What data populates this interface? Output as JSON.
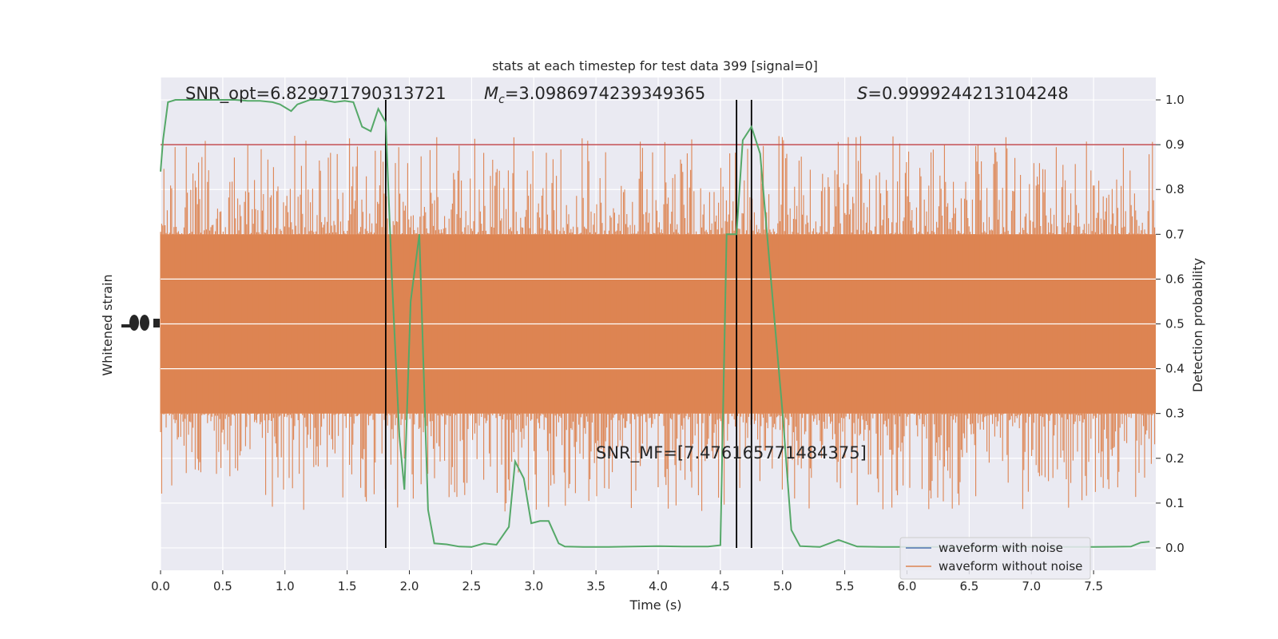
{
  "chart_data": {
    "type": "line",
    "title": "stats at each timestep for test data 399 [signal=0]",
    "xlabel": "Time (s)",
    "ylabel_left": "Whitened strain",
    "ylabel_right": "Detection probability",
    "xlim": [
      0.0,
      8.0
    ],
    "ylim_right": [
      -0.05,
      1.05
    ],
    "x_ticks": [
      "0.0",
      "0.5",
      "1.0",
      "1.5",
      "2.0",
      "2.5",
      "3.0",
      "3.5",
      "4.0",
      "4.5",
      "5.0",
      "5.5",
      "6.0",
      "6.5",
      "7.0",
      "7.5"
    ],
    "x_tick_values": [
      0.0,
      0.5,
      1.0,
      1.5,
      2.0,
      2.5,
      3.0,
      3.5,
      4.0,
      4.5,
      5.0,
      5.5,
      6.0,
      6.5,
      7.0,
      7.5
    ],
    "y_right_ticks": [
      "0.0",
      "0.1",
      "0.2",
      "0.3",
      "0.4",
      "0.5",
      "0.6",
      "0.7",
      "0.8",
      "0.9",
      "1.0"
    ],
    "y_right_tick_values": [
      0.0,
      0.1,
      0.2,
      0.3,
      0.4,
      0.5,
      0.6,
      0.7,
      0.8,
      0.9,
      1.0
    ],
    "grid": true,
    "legend_position": "lower-right",
    "legend": [
      {
        "label": "waveform with noise",
        "color": "#4c72b0"
      },
      {
        "label": "waveform without noise",
        "color": "#dd8452"
      }
    ],
    "annotations": {
      "snr_opt": "SNR_opt=6.829971790313721",
      "mc_symbol": "M",
      "mc_sub": "c",
      "mc_value": "=3.0986974239349365",
      "s_symbol": "S",
      "s_value": "=0.9999244213104248",
      "snr_mf": "SNR_MF=[7.476165771484375]"
    },
    "threshold": {
      "value": 0.9,
      "color": "#c44e52"
    },
    "vertical_lines_x": [
      1.81,
      4.63,
      4.75
    ],
    "strain_band": {
      "upper": 0.7,
      "lower": 0.3,
      "color": "#dd8452"
    },
    "detection_series": {
      "name": "detection probability",
      "color": "#55a868",
      "x": [
        0.0,
        0.02,
        0.06,
        0.12,
        0.2,
        0.3,
        0.4,
        0.5,
        0.6,
        0.7,
        0.8,
        0.9,
        0.96,
        1.05,
        1.1,
        1.2,
        1.3,
        1.4,
        1.48,
        1.55,
        1.62,
        1.69,
        1.75,
        1.81,
        1.86,
        1.92,
        1.96,
        2.01,
        2.08,
        2.15,
        2.2,
        2.3,
        2.4,
        2.5,
        2.6,
        2.7,
        2.8,
        2.85,
        2.92,
        2.98,
        3.05,
        3.12,
        3.2,
        3.25,
        3.4,
        3.6,
        3.8,
        4.0,
        4.2,
        4.4,
        4.5,
        4.55,
        4.63,
        4.68,
        4.75,
        4.82,
        4.9,
        5.0,
        5.07,
        5.14,
        5.3,
        5.45,
        5.6,
        5.8,
        6.0,
        6.5,
        7.0,
        7.5,
        7.8,
        7.88,
        7.95
      ],
      "y": [
        0.84,
        0.91,
        0.995,
        1.0,
        1.0,
        1.0,
        1.0,
        1.0,
        1.0,
        0.998,
        0.998,
        0.995,
        0.99,
        0.975,
        0.99,
        1.0,
        1.0,
        0.995,
        0.998,
        0.995,
        0.94,
        0.93,
        0.98,
        0.95,
        0.6,
        0.25,
        0.13,
        0.55,
        0.7,
        0.085,
        0.01,
        0.008,
        0.003,
        0.002,
        0.01,
        0.007,
        0.047,
        0.193,
        0.155,
        0.055,
        0.06,
        0.06,
        0.01,
        0.003,
        0.002,
        0.002,
        0.003,
        0.004,
        0.003,
        0.003,
        0.006,
        0.7,
        0.7,
        0.91,
        0.94,
        0.88,
        0.62,
        0.3,
        0.04,
        0.004,
        0.002,
        0.018,
        0.003,
        0.002,
        0.002,
        0.002,
        0.002,
        0.002,
        0.003,
        0.012,
        0.014
      ]
    }
  }
}
